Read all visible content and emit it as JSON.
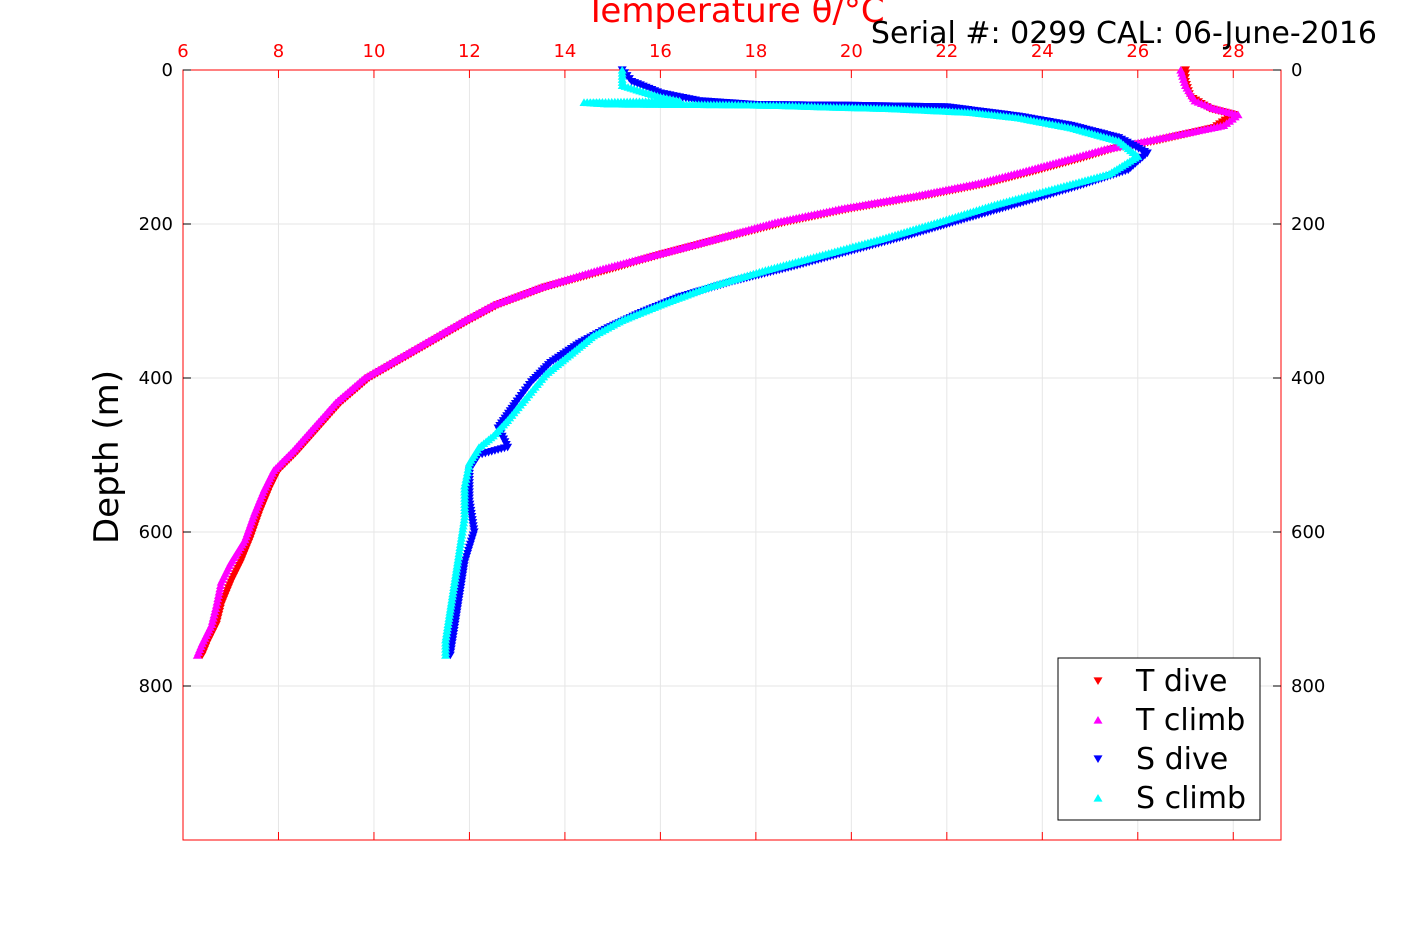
{
  "serial_label": "Serial #: 0299 CAL: 06-June-2016",
  "colors": {
    "temp_axis": "#ff0000",
    "grid": "#e6e6e6",
    "t_dive": "#ff0000",
    "t_climb": "#ff00ff",
    "s_dive": "#0000ff",
    "s_climb": "#00ffff"
  },
  "chart_data": {
    "type": "scatter",
    "title": "",
    "xlabel": "Temperature θ/°C",
    "ylabel": "Depth (m)",
    "xlim": [
      6,
      29
    ],
    "ylim": [
      0,
      1000
    ],
    "y_inverted": true,
    "grid": true,
    "legend_position": "bottom-right",
    "x_ticks": [
      "6",
      "8",
      "10",
      "12",
      "14",
      "16",
      "18",
      "20",
      "22",
      "24",
      "26",
      "28"
    ],
    "y_ticks": [
      "0",
      "200",
      "400",
      "600",
      "800"
    ],
    "y_tick_values": [
      0,
      200,
      400,
      600,
      800
    ],
    "series": [
      {
        "name": "T dive",
        "marker": "triangle-down",
        "color": "#ff0000",
        "points": [
          [
            27.0,
            0
          ],
          [
            27.0,
            15
          ],
          [
            27.1,
            35
          ],
          [
            27.5,
            50
          ],
          [
            28.0,
            58
          ],
          [
            27.6,
            75
          ],
          [
            26.4,
            92
          ],
          [
            25.5,
            102
          ],
          [
            24.8,
            115
          ],
          [
            23.8,
            132
          ],
          [
            22.8,
            148
          ],
          [
            21.5,
            164
          ],
          [
            20.0,
            180
          ],
          [
            18.6,
            198
          ],
          [
            17.1,
            222
          ],
          [
            16.0,
            240
          ],
          [
            15.0,
            258
          ],
          [
            13.6,
            282
          ],
          [
            12.6,
            305
          ],
          [
            12.0,
            325
          ],
          [
            11.3,
            350
          ],
          [
            10.6,
            375
          ],
          [
            9.9,
            400
          ],
          [
            9.3,
            432
          ],
          [
            8.9,
            460
          ],
          [
            8.4,
            495
          ],
          [
            8.0,
            520
          ],
          [
            7.8,
            545
          ],
          [
            7.6,
            575
          ],
          [
            7.4,
            610
          ],
          [
            7.2,
            640
          ],
          [
            7.0,
            665
          ],
          [
            6.8,
            695
          ],
          [
            6.7,
            720
          ],
          [
            6.5,
            745
          ],
          [
            6.4,
            760
          ]
        ]
      },
      {
        "name": "T climb",
        "marker": "triangle-up",
        "color": "#ff00ff",
        "points": [
          [
            26.9,
            0
          ],
          [
            27.0,
            20
          ],
          [
            27.2,
            40
          ],
          [
            27.6,
            50
          ],
          [
            28.1,
            58
          ],
          [
            27.8,
            72
          ],
          [
            27.0,
            82
          ],
          [
            26.2,
            92
          ],
          [
            25.3,
            103
          ],
          [
            24.6,
            115
          ],
          [
            23.6,
            132
          ],
          [
            22.6,
            148
          ],
          [
            21.3,
            164
          ],
          [
            19.8,
            180
          ],
          [
            18.4,
            198
          ],
          [
            17.0,
            222
          ],
          [
            15.9,
            240
          ],
          [
            14.8,
            258
          ],
          [
            13.5,
            282
          ],
          [
            12.5,
            305
          ],
          [
            11.9,
            325
          ],
          [
            11.2,
            350
          ],
          [
            10.5,
            375
          ],
          [
            9.8,
            400
          ],
          [
            9.2,
            432
          ],
          [
            8.8,
            460
          ],
          [
            8.3,
            495
          ],
          [
            7.9,
            520
          ],
          [
            7.7,
            545
          ],
          [
            7.5,
            575
          ],
          [
            7.3,
            610
          ],
          [
            7.0,
            640
          ],
          [
            6.8,
            665
          ],
          [
            6.7,
            695
          ],
          [
            6.6,
            720
          ],
          [
            6.4,
            745
          ],
          [
            6.3,
            760
          ]
        ]
      },
      {
        "name": "S dive",
        "marker": "triangle-down",
        "color": "#0000ff",
        "points": [
          [
            15.2,
            0
          ],
          [
            15.4,
            15
          ],
          [
            16.0,
            30
          ],
          [
            16.8,
            40
          ],
          [
            18.0,
            45
          ],
          [
            20.0,
            46
          ],
          [
            22.0,
            48
          ],
          [
            23.5,
            60
          ],
          [
            24.6,
            72
          ],
          [
            25.6,
            88
          ],
          [
            26.2,
            108
          ],
          [
            25.8,
            130
          ],
          [
            24.8,
            150
          ],
          [
            23.6,
            172
          ],
          [
            22.3,
            195
          ],
          [
            21.2,
            215
          ],
          [
            20.0,
            235
          ],
          [
            18.8,
            255
          ],
          [
            17.5,
            275
          ],
          [
            16.4,
            295
          ],
          [
            15.6,
            315
          ],
          [
            14.9,
            335
          ],
          [
            14.3,
            355
          ],
          [
            13.7,
            380
          ],
          [
            13.3,
            405
          ],
          [
            13.0,
            430
          ],
          [
            12.6,
            465
          ],
          [
            12.8,
            490
          ],
          [
            12.2,
            500
          ],
          [
            12.0,
            520
          ],
          [
            12.0,
            560
          ],
          [
            12.1,
            600
          ],
          [
            11.9,
            640
          ],
          [
            11.8,
            680
          ],
          [
            11.7,
            720
          ],
          [
            11.6,
            760
          ]
        ]
      },
      {
        "name": "S climb",
        "marker": "triangle-up",
        "color": "#00ffff",
        "points": [
          [
            15.2,
            0
          ],
          [
            15.2,
            20
          ],
          [
            16.0,
            35
          ],
          [
            16.4,
            40
          ],
          [
            14.4,
            42
          ],
          [
            14.9,
            44
          ],
          [
            17.5,
            45
          ],
          [
            18.5,
            46
          ],
          [
            19.5,
            48
          ],
          [
            20.8,
            50
          ],
          [
            22.5,
            55
          ],
          [
            23.5,
            62
          ],
          [
            24.6,
            75
          ],
          [
            25.6,
            92
          ],
          [
            26.0,
            112
          ],
          [
            25.4,
            135
          ],
          [
            24.2,
            155
          ],
          [
            23.0,
            175
          ],
          [
            21.8,
            198
          ],
          [
            20.6,
            220
          ],
          [
            19.4,
            240
          ],
          [
            18.2,
            260
          ],
          [
            17.0,
            282
          ],
          [
            16.0,
            305
          ],
          [
            15.2,
            325
          ],
          [
            14.6,
            345
          ],
          [
            14.1,
            370
          ],
          [
            13.6,
            395
          ],
          [
            13.2,
            425
          ],
          [
            12.8,
            455
          ],
          [
            12.5,
            475
          ],
          [
            12.2,
            490
          ],
          [
            12.0,
            510
          ],
          [
            11.9,
            540
          ],
          [
            11.9,
            580
          ],
          [
            11.8,
            620
          ],
          [
            11.7,
            660
          ],
          [
            11.6,
            700
          ],
          [
            11.5,
            740
          ],
          [
            11.5,
            760
          ]
        ]
      }
    ]
  }
}
